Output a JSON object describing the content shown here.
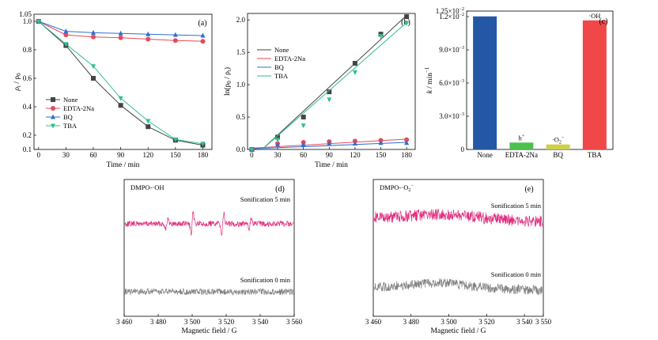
{
  "chart_data": [
    {
      "id": "a",
      "type": "line",
      "panel_label": "(a)",
      "xlabel": "Time / min",
      "ylabel_main": "ρ",
      "ylabel_sub1": "t",
      "ylabel_mid": " / ρ",
      "ylabel_sub2": "0",
      "xlim": [
        -5,
        190
      ],
      "ylim": [
        0.1,
        1.05
      ],
      "xticks": [
        0,
        30,
        60,
        90,
        120,
        150,
        180
      ],
      "yticks": [
        0.1,
        0.2,
        0.4,
        0.6,
        0.8,
        1.0
      ],
      "yticklabels": [
        "0.1",
        "0.2",
        "0.4",
        "0.6",
        "0.8",
        "1.0"
      ],
      "extra_top_label": "1.05",
      "legend_position": "lower-left",
      "x": [
        0,
        30,
        60,
        90,
        120,
        150,
        180
      ],
      "series": [
        {
          "name": "None",
          "color": "#444444",
          "marker": "square",
          "values": [
            1.0,
            0.83,
            0.6,
            0.41,
            0.26,
            0.165,
            0.13
          ]
        },
        {
          "name": "EDTA-2Na",
          "color": "#e84a5a",
          "marker": "circle",
          "values": [
            1.0,
            0.905,
            0.89,
            0.885,
            0.875,
            0.865,
            0.86
          ]
        },
        {
          "name": "BQ",
          "color": "#2f6fd0",
          "marker": "triangle-up",
          "values": [
            1.0,
            0.93,
            0.92,
            0.915,
            0.91,
            0.905,
            0.9
          ]
        },
        {
          "name": "TBA",
          "color": "#2fbf8f",
          "marker": "triangle-down",
          "values": [
            1.0,
            0.84,
            0.685,
            0.46,
            0.3,
            0.17,
            0.14
          ]
        }
      ]
    },
    {
      "id": "b",
      "type": "scatter",
      "panel_label": "(b)",
      "xlabel": "Time / min",
      "ylabel_main": "ln(ρ",
      "ylabel_sub1": "0",
      "ylabel_mid": " / ρ",
      "ylabel_sub2": "t",
      "ylabel_end": ")",
      "xlim": [
        -5,
        190
      ],
      "ylim": [
        0,
        2.1
      ],
      "xticks": [
        0,
        30,
        60,
        90,
        120,
        150,
        180
      ],
      "yticks": [
        0.0,
        0.5,
        1.0,
        1.5,
        2.0
      ],
      "yticklabels": [
        "0.0",
        "0.5",
        "1.0",
        "1.5",
        "2.0"
      ],
      "legend_position": "upper-left",
      "x": [
        0,
        30,
        60,
        90,
        120,
        150,
        180
      ],
      "series": [
        {
          "name": "None",
          "color": "#444444",
          "marker": "square",
          "values": [
            0.0,
            0.19,
            0.5,
            0.89,
            1.33,
            1.78,
            2.05
          ],
          "fit": [
            [
              12,
              0
            ],
            [
              180,
              2.07
            ]
          ]
        },
        {
          "name": "EDTA-2Na",
          "color": "#e84a5a",
          "marker": "circle",
          "values": [
            0.0,
            0.09,
            0.11,
            0.12,
            0.13,
            0.14,
            0.15
          ],
          "fit": [
            [
              0,
              0.02
            ],
            [
              180,
              0.16
            ]
          ]
        },
        {
          "name": "BQ",
          "color": "#2f6fd0",
          "marker": "triangle-up",
          "values": [
            0.0,
            0.07,
            0.08,
            0.09,
            0.09,
            0.1,
            0.1
          ],
          "fit": [
            [
              0,
              0.01
            ],
            [
              180,
              0.11
            ]
          ]
        },
        {
          "name": "TBA",
          "color": "#2fbf8f",
          "marker": "triangle-down",
          "values": [
            0.0,
            0.15,
            0.37,
            0.77,
            1.19,
            1.75,
            1.95
          ],
          "fit": [
            [
              12,
              0
            ],
            [
              180,
              1.96
            ]
          ]
        }
      ]
    },
    {
      "id": "c",
      "type": "bar",
      "panel_label": "(c)",
      "ylabel_main": "k",
      "ylabel_mid": " / min",
      "ylabel_sup": "−1",
      "ylim": [
        0,
        0.0125
      ],
      "yticks": [
        0,
        0.003,
        0.006,
        0.009,
        0.012,
        0.0125
      ],
      "yticklabels": [
        {
          "base": "0",
          "exp": ""
        },
        {
          "base": "3.0×10",
          "exp": "−3"
        },
        {
          "base": "6.0×10",
          "exp": "−3"
        },
        {
          "base": "9.0×10",
          "exp": "−3"
        },
        {
          "base": "1.2×10",
          "exp": "−2"
        },
        {
          "base": "1.25×10",
          "exp": "−2"
        }
      ],
      "categories": [
        "None",
        "EDTA-2Na",
        "BQ",
        "TBA"
      ],
      "values": [
        0.01202,
        0.00062,
        0.00045,
        0.01166
      ],
      "colors": [
        "#2457a6",
        "#4cc14c",
        "#cfcf4a",
        "#f04848"
      ],
      "bar_labels": [
        {
          "text": "",
          "sup": "",
          "sub": ""
        },
        {
          "text": "h",
          "sup": "+",
          "sub": ""
        },
        {
          "text": "·O",
          "sup": "−",
          "sub": "2"
        },
        {
          "text": "·OH",
          "sup": "",
          "sub": ""
        }
      ]
    },
    {
      "id": "d",
      "type": "line",
      "panel_label": "(d)",
      "xlabel": "Magnetic field / G",
      "title_text": "DMPO-·OH",
      "title_sub": "",
      "title_sup": "",
      "xlim": [
        3460,
        3560
      ],
      "xticks": [
        3460,
        3480,
        3500,
        3520,
        3540,
        3560
      ],
      "xticklabels": [
        "3 460",
        "3 480",
        "3 500",
        "3 520",
        "3 540",
        "3 560"
      ],
      "series": [
        {
          "name": "Sonification 5 min",
          "color": "#e0307f"
        },
        {
          "name": "Sonification 0 min",
          "color": "#808080"
        }
      ],
      "peaks": [
        [
          3485,
          0.7
        ],
        [
          3500,
          1.6
        ],
        [
          3518,
          1.5
        ],
        [
          3534,
          0.7
        ]
      ]
    },
    {
      "id": "e",
      "type": "line",
      "panel_label": "(e)",
      "xlabel": "Magnetic field / G",
      "title_text": "DMPO-·O",
      "title_sub": "2",
      "title_sup": "−",
      "xlim": [
        3460,
        3550
      ],
      "xticks": [
        3460,
        3480,
        3500,
        3520,
        3540,
        3550
      ],
      "xticklabels": [
        "3 460",
        "3 480",
        "3 500",
        "3 520",
        "3 540",
        "3 550"
      ],
      "series": [
        {
          "name": "Sonification 5 min",
          "color": "#e0307f"
        },
        {
          "name": "Sonification 0 min",
          "color": "#808080"
        }
      ]
    }
  ]
}
